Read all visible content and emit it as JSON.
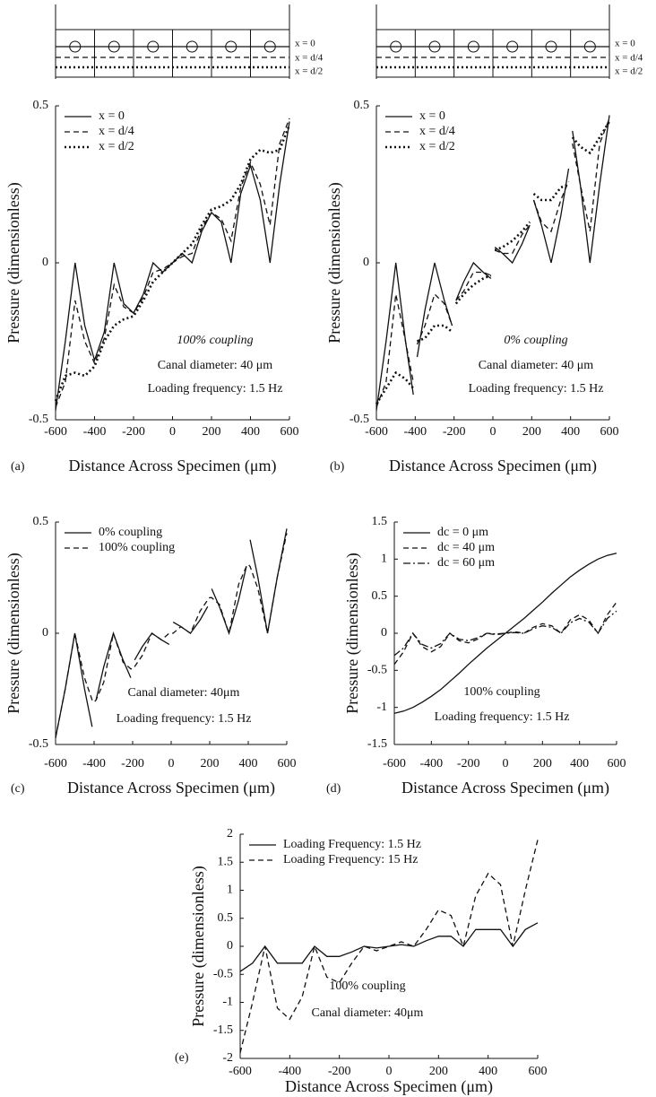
{
  "chart_data": [
    {
      "type": "line",
      "panel_label": "(a)",
      "x_label": "Distance Across Specimen (μm)",
      "y_label": "Pressure (dimensionless)",
      "schematic_labels": [
        "x = 0",
        "x = d/4",
        "x = d/2"
      ],
      "annotations": [
        "100% coupling",
        "Canal diameter: 40 μm",
        "Loading frequency: 1.5 Hz"
      ],
      "xlim": [
        -600,
        600
      ],
      "ylim": [
        -0.5,
        0.5
      ],
      "xticks": [
        -600,
        -400,
        -200,
        0,
        200,
        400,
        600
      ],
      "yticks": [
        -0.5,
        0,
        0.5
      ],
      "legend": "upper left",
      "x": [
        -600,
        -550,
        -500,
        -450,
        -400,
        -350,
        -300,
        -250,
        -200,
        -150,
        -100,
        -50,
        0,
        50,
        100,
        150,
        200,
        250,
        300,
        350,
        400,
        450,
        500,
        550,
        600
      ],
      "series": [
        {
          "name": "x = 0",
          "color": "#111111",
          "style": "solid",
          "values": [
            -0.47,
            -0.25,
            0,
            -0.2,
            -0.31,
            -0.22,
            0,
            -0.13,
            -0.16,
            -0.1,
            0,
            -0.03,
            0,
            0.03,
            0,
            0.1,
            0.16,
            0.13,
            0,
            0.22,
            0.31,
            0.2,
            0,
            0.25,
            0.45
          ]
        },
        {
          "name": "x = d/4",
          "color": "#111111",
          "style": "dashed",
          "values": [
            -0.46,
            -0.38,
            -0.12,
            -0.25,
            -0.32,
            -0.24,
            -0.07,
            -0.14,
            -0.16,
            -0.11,
            -0.03,
            -0.02,
            0,
            0.02,
            0.03,
            0.11,
            0.16,
            0.14,
            0.07,
            0.24,
            0.32,
            0.25,
            0.12,
            0.38,
            0.46
          ]
        },
        {
          "name": "x = d/2",
          "color": "#111111",
          "style": "dotted",
          "values": [
            -0.44,
            -0.36,
            -0.35,
            -0.36,
            -0.33,
            -0.25,
            -0.2,
            -0.18,
            -0.17,
            -0.12,
            -0.06,
            -0.03,
            0,
            0.03,
            0.06,
            0.12,
            0.17,
            0.18,
            0.2,
            0.25,
            0.33,
            0.36,
            0.35,
            0.36,
            0.44
          ]
        }
      ]
    },
    {
      "type": "line",
      "panel_label": "(b)",
      "x_label": "Distance Across Specimen (μm)",
      "y_label": "Pressure (dimensionless)",
      "schematic_labels": [
        "x = 0",
        "x = d/4",
        "x = d/2"
      ],
      "annotations": [
        "0% coupling",
        "Canal diameter: 40 μm",
        "Loading frequency: 1.5 Hz"
      ],
      "xlim": [
        -600,
        600
      ],
      "ylim": [
        -0.5,
        0.5
      ],
      "xticks": [
        -600,
        -400,
        -200,
        0,
        200,
        400,
        600
      ],
      "yticks": [
        -0.5,
        0,
        0.5
      ],
      "legend": "upper left",
      "x": [
        -600,
        -550,
        -500,
        -450,
        -410,
        -400,
        -390,
        -350,
        -300,
        -250,
        -210,
        -200,
        -190,
        -150,
        -100,
        -50,
        -10,
        0,
        10,
        50,
        100,
        150,
        190,
        200,
        210,
        250,
        300,
        350,
        390,
        400,
        410,
        450,
        500,
        550,
        600
      ],
      "series": [
        {
          "name": "x = 0",
          "color": "#111111",
          "style": "solid",
          "values": [
            -0.47,
            -0.25,
            0,
            -0.25,
            -0.42,
            null,
            -0.3,
            -0.15,
            0,
            -0.12,
            -0.2,
            null,
            -0.12,
            -0.06,
            0,
            -0.03,
            -0.05,
            null,
            0.05,
            0.03,
            0,
            0.06,
            0.12,
            null,
            0.2,
            0.12,
            0,
            0.15,
            0.3,
            null,
            0.42,
            0.25,
            0,
            0.25,
            0.47
          ]
        },
        {
          "name": "x = d/4",
          "color": "#111111",
          "style": "dashed",
          "values": [
            -0.46,
            -0.38,
            -0.1,
            -0.25,
            -0.38,
            null,
            -0.26,
            -0.2,
            -0.1,
            -0.13,
            -0.2,
            null,
            -0.12,
            -0.09,
            -0.03,
            -0.03,
            -0.04,
            null,
            0.04,
            0.03,
            0.03,
            0.09,
            0.12,
            null,
            0.2,
            0.13,
            0.1,
            0.2,
            0.26,
            null,
            0.38,
            0.25,
            0.1,
            0.38,
            0.46
          ]
        },
        {
          "name": "x = d/2",
          "color": "#111111",
          "style": "dotted",
          "values": [
            -0.45,
            -0.4,
            -0.35,
            -0.37,
            -0.4,
            null,
            -0.25,
            -0.24,
            -0.2,
            -0.2,
            -0.22,
            null,
            -0.13,
            -0.1,
            -0.07,
            -0.05,
            -0.04,
            null,
            0.04,
            0.05,
            0.07,
            0.1,
            0.13,
            null,
            0.22,
            0.2,
            0.2,
            0.24,
            0.25,
            null,
            0.4,
            0.37,
            0.35,
            0.4,
            0.45
          ]
        }
      ]
    },
    {
      "type": "line",
      "panel_label": "(c)",
      "x_label": "Distance Across Specimen (μm)",
      "y_label": "Pressure (dimensionless)",
      "annotations": [
        "Canal diameter: 40μm",
        "Loading frequency: 1.5 Hz"
      ],
      "xlim": [
        -600,
        600
      ],
      "ylim": [
        -0.5,
        0.5
      ],
      "xticks": [
        -600,
        -400,
        -200,
        0,
        200,
        400,
        600
      ],
      "yticks": [
        -0.5,
        0,
        0.5
      ],
      "legend": "upper left",
      "x": [
        -600,
        -550,
        -500,
        -450,
        -410,
        -400,
        -390,
        -350,
        -300,
        -250,
        -210,
        -200,
        -190,
        -150,
        -100,
        -50,
        -10,
        0,
        10,
        50,
        100,
        150,
        190,
        200,
        210,
        250,
        300,
        350,
        390,
        400,
        410,
        450,
        500,
        550,
        600
      ],
      "series": [
        {
          "name": "0% coupling",
          "color": "#111111",
          "style": "solid",
          "values": [
            -0.47,
            -0.25,
            0,
            -0.25,
            -0.42,
            null,
            -0.3,
            -0.15,
            0,
            -0.12,
            -0.2,
            null,
            -0.12,
            -0.06,
            0,
            -0.03,
            -0.05,
            null,
            0.05,
            0.03,
            0,
            0.06,
            0.12,
            null,
            0.2,
            0.12,
            0,
            0.15,
            0.3,
            null,
            0.42,
            0.25,
            0,
            0.25,
            0.47
          ]
        },
        {
          "name": "100% coupling",
          "color": "#111111",
          "style": "dashed",
          "values": [
            -0.47,
            -0.25,
            0,
            -0.2,
            -0.3,
            -0.31,
            -0.3,
            -0.22,
            0,
            -0.13,
            -0.16,
            -0.16,
            -0.15,
            -0.1,
            0,
            -0.03,
            0,
            0,
            0,
            0.03,
            0,
            0.1,
            0.15,
            0.16,
            0.16,
            0.13,
            0,
            0.22,
            0.3,
            0.31,
            0.3,
            0.2,
            0,
            0.25,
            0.45
          ]
        }
      ]
    },
    {
      "type": "line",
      "panel_label": "(d)",
      "x_label": "Distance Across Specimen (μm)",
      "y_label": "Pressure (dimensionless)",
      "annotations": [
        "100% coupling",
        "Loading frequency: 1.5 Hz"
      ],
      "xlim": [
        -600,
        600
      ],
      "ylim": [
        -1.5,
        1.5
      ],
      "xticks": [
        -600,
        -400,
        -200,
        0,
        200,
        400,
        600
      ],
      "yticks": [
        -1.5,
        -1,
        -0.5,
        0,
        0.5,
        1,
        1.5
      ],
      "legend": "upper left",
      "x": [
        -600,
        -550,
        -500,
        -450,
        -400,
        -350,
        -300,
        -250,
        -200,
        -150,
        -100,
        -50,
        0,
        50,
        100,
        150,
        200,
        250,
        300,
        350,
        400,
        450,
        500,
        550,
        600
      ],
      "series": [
        {
          "name": "dc = 0 μm",
          "color": "#111111",
          "style": "solid",
          "values": [
            -1.08,
            -1.05,
            -1.0,
            -0.93,
            -0.85,
            -0.76,
            -0.65,
            -0.54,
            -0.42,
            -0.31,
            -0.2,
            -0.1,
            0,
            0.1,
            0.2,
            0.31,
            0.42,
            0.54,
            0.65,
            0.76,
            0.85,
            0.93,
            1.0,
            1.05,
            1.08
          ]
        },
        {
          "name": "dc = 40 μm",
          "color": "#111111",
          "style": "dashed",
          "values": [
            -0.42,
            -0.25,
            0,
            -0.18,
            -0.25,
            -0.18,
            0,
            -0.1,
            -0.13,
            -0.08,
            0,
            -0.02,
            0,
            0.02,
            0,
            0.08,
            0.13,
            0.1,
            0,
            0.18,
            0.25,
            0.18,
            0,
            0.25,
            0.42
          ]
        },
        {
          "name": "dc = 60 μm",
          "color": "#111111",
          "style": "dashdot",
          "values": [
            -0.3,
            -0.2,
            0,
            -0.15,
            -0.2,
            -0.14,
            0,
            -0.08,
            -0.1,
            -0.06,
            0,
            -0.01,
            0,
            0.01,
            0,
            0.06,
            0.1,
            0.08,
            0,
            0.14,
            0.2,
            0.15,
            0,
            0.2,
            0.3
          ]
        }
      ]
    },
    {
      "type": "line",
      "panel_label": "(e)",
      "x_label": "Distance Across Specimen (μm)",
      "y_label": "Pressure (dimensionless)",
      "annotations": [
        "100% coupling",
        "Canal diameter: 40μm"
      ],
      "xlim": [
        -600,
        600
      ],
      "ylim": [
        -2,
        2
      ],
      "xticks": [
        -600,
        -400,
        -200,
        0,
        200,
        400,
        600
      ],
      "yticks": [
        -2,
        -1.5,
        -1,
        -0.5,
        0,
        0.5,
        1,
        1.5,
        2
      ],
      "legend": "upper left",
      "x": [
        -600,
        -550,
        -500,
        -450,
        -400,
        -350,
        -300,
        -250,
        -200,
        -150,
        -100,
        -50,
        0,
        50,
        100,
        150,
        200,
        250,
        300,
        350,
        400,
        450,
        500,
        550,
        600
      ],
      "series": [
        {
          "name": "Loading Frequency: 1.5 Hz",
          "color": "#111111",
          "style": "solid",
          "values": [
            -0.45,
            -0.3,
            0,
            -0.3,
            -0.3,
            -0.3,
            0,
            -0.18,
            -0.18,
            -0.1,
            0,
            -0.03,
            0,
            0.03,
            0,
            0.1,
            0.18,
            0.18,
            0,
            0.3,
            0.3,
            0.3,
            0,
            0.3,
            0.42
          ]
        },
        {
          "name": "Loading Frequency: 15 Hz",
          "color": "#111111",
          "style": "dashed",
          "values": [
            -1.9,
            -1.0,
            0,
            -1.1,
            -1.3,
            -0.9,
            0,
            -0.55,
            -0.65,
            -0.3,
            0,
            -0.08,
            0,
            0.08,
            0,
            0.3,
            0.65,
            0.55,
            0,
            0.9,
            1.3,
            1.1,
            0,
            1.0,
            1.9
          ]
        }
      ]
    }
  ]
}
